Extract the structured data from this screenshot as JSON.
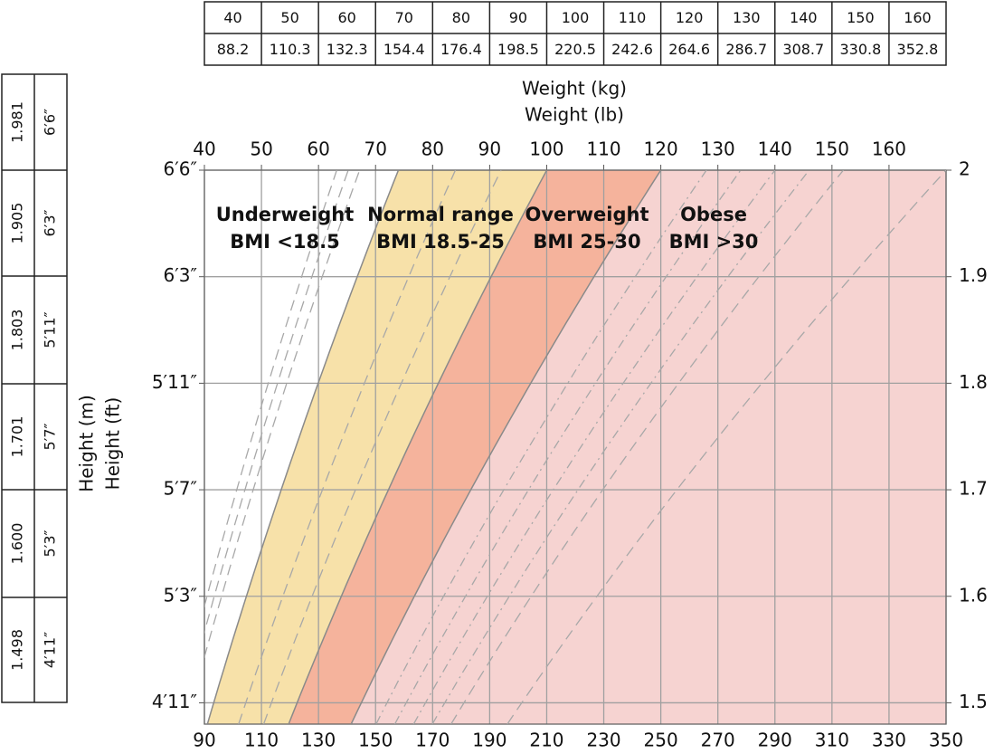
{
  "chart_data": {
    "type": "bmi",
    "x_label": "Weight (lb)",
    "x2_label": "Weight (kg)",
    "y_label": "Height (m)",
    "y_label2": "Height (ft)",
    "xlim": [
      90,
      350
    ],
    "xticks": [
      90,
      110,
      130,
      150,
      170,
      190,
      210,
      230,
      250,
      270,
      290,
      310,
      330,
      350
    ],
    "x2lim": [
      40,
      170
    ],
    "x2ticks": [
      40,
      50,
      60,
      70,
      80,
      90,
      100,
      110,
      120,
      130,
      140,
      150,
      160
    ],
    "ylim": [
      1.48,
      2
    ],
    "yticks": [
      1.5,
      1.6,
      1.7,
      1.8,
      1.9,
      2
    ],
    "y_left_labels": [
      "4′11″",
      "5′3″",
      "5′7″",
      "5′11″",
      "6′3″",
      "6′6″"
    ],
    "grid": true,
    "bands": [
      {
        "name": "Underweight",
        "label": "BMI <18.5",
        "min": null,
        "max": 18.5,
        "color": "#ffffff"
      },
      {
        "name": "Normal range",
        "label": "BMI 18.5-25",
        "min": 18.5,
        "max": 25,
        "color": "#f7e1a9"
      },
      {
        "name": "Overweight",
        "label": "BMI 25-30",
        "min": 25,
        "max": 30,
        "color": "#f5b39c"
      },
      {
        "name": "Obese",
        "label": "BMI >30",
        "min": 30,
        "max": null,
        "color": "#f6d3d1"
      }
    ],
    "reference_lines": [
      {
        "bmi": 15.8,
        "dash": "dashed"
      },
      {
        "bmi": 16.3,
        "dash": "dashed"
      },
      {
        "bmi": 16.8,
        "dash": "dashed"
      },
      {
        "bmi": 21,
        "dash": "dashed"
      },
      {
        "bmi": 23,
        "dash": "dashed"
      },
      {
        "bmi": 32,
        "dash": "dashdot"
      },
      {
        "bmi": 33.5,
        "dash": "dashdot"
      },
      {
        "bmi": 35,
        "dash": "dashdot"
      },
      {
        "bmi": 36.5,
        "dash": "dashdot"
      },
      {
        "bmi": 38,
        "dash": "dashed"
      },
      {
        "bmi": 42.5,
        "dash": "dashed"
      }
    ]
  },
  "weight_table": {
    "kg": [
      "40",
      "50",
      "60",
      "70",
      "80",
      "90",
      "100",
      "110",
      "120",
      "130",
      "140",
      "150",
      "160"
    ],
    "lb": [
      "88.2",
      "110.3",
      "132.3",
      "154.4",
      "176.4",
      "198.5",
      "220.5",
      "242.6",
      "264.6",
      "286.7",
      "308.7",
      "330.8",
      "352.8"
    ]
  },
  "height_table": {
    "m": [
      "1.981",
      "1.905",
      "1.803",
      "1.701",
      "1.600",
      "1.498"
    ],
    "ft": [
      "6′6″",
      "6′3″",
      "5′11″",
      "5′7″",
      "5′3″",
      "4′11″"
    ]
  }
}
